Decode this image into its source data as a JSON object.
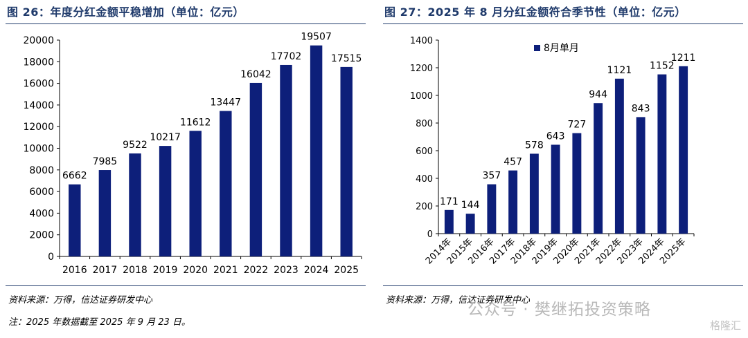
{
  "left": {
    "title": "图 26：年度分红金额平稳增加（单位：亿元）",
    "source": "资料来源：万得，信达证券研发中心",
    "note": "注：2025 年数据截至 2025 年 9 月 23 日。"
  },
  "right": {
    "title": "图 27：2025 年 8 月分红金额符合季节性（单位：亿元）",
    "source": "资料来源：万得，信达证券研发中心"
  },
  "watermark": {
    "text": "公众号 · 樊继拓投资策略",
    "logo": "格隆汇"
  },
  "colors": {
    "bar": "#0d1f7a",
    "title": "#1f3a6b"
  },
  "chart_data": [
    {
      "type": "bar",
      "title": "图 26：年度分红金额平稳增加（单位：亿元）",
      "categories": [
        "2016",
        "2017",
        "2018",
        "2019",
        "2020",
        "2021",
        "2022",
        "2023",
        "2024",
        "2025"
      ],
      "values": [
        6662,
        7985,
        9522,
        10217,
        11612,
        13447,
        16042,
        17702,
        19507,
        17515
      ],
      "ylim": [
        0,
        20000
      ],
      "yticks": [
        0,
        2000,
        4000,
        6000,
        8000,
        10000,
        12000,
        14000,
        16000,
        18000,
        20000
      ],
      "grid": false,
      "data_labels": true
    },
    {
      "type": "bar",
      "title": "图 27：2025 年 8 月分红金额符合季节性（单位：亿元）",
      "categories": [
        "2014年",
        "2015年",
        "2016年",
        "2017年",
        "2018年",
        "2019年",
        "2020年",
        "2021年",
        "2022年",
        "2023年",
        "2024年",
        "2025年"
      ],
      "series": [
        {
          "name": "8月单月",
          "values": [
            171,
            144,
            357,
            457,
            578,
            643,
            727,
            944,
            1121,
            843,
            1152,
            1211
          ]
        }
      ],
      "ylim": [
        0,
        1400
      ],
      "yticks": [
        0,
        200,
        400,
        600,
        800,
        1000,
        1200,
        1400
      ],
      "grid": false,
      "legend": "top-left",
      "data_labels": true
    }
  ]
}
